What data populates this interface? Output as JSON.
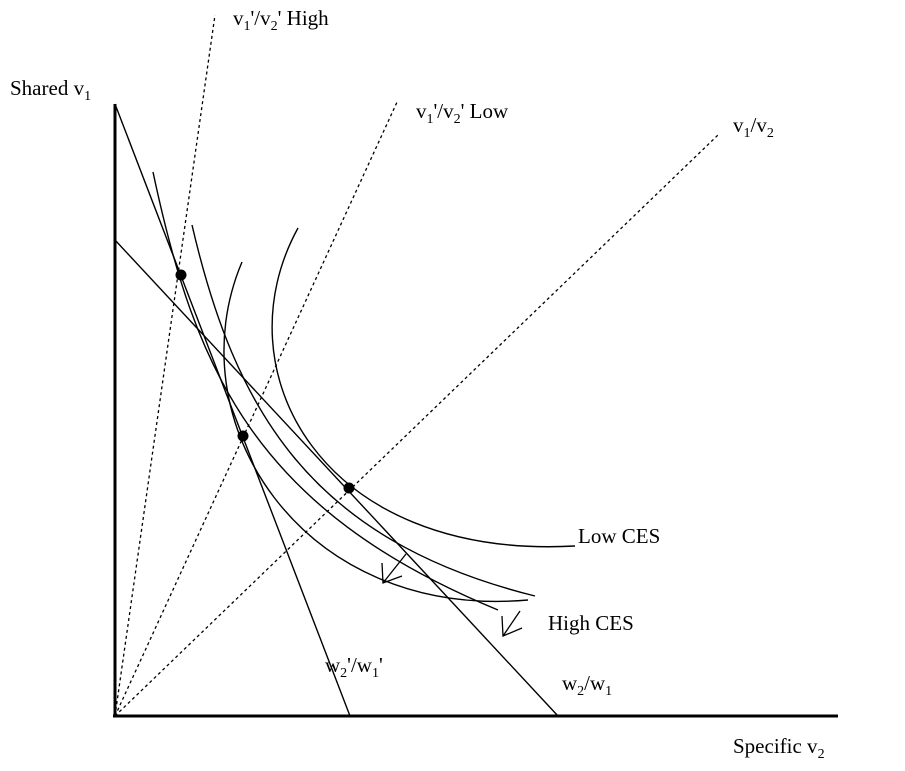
{
  "axes": {
    "y_label": "Shared v",
    "y_label_sub": "1",
    "x_label": "Specific v",
    "x_label_sub": "2"
  },
  "rays": {
    "high": {
      "a": "v",
      "a_sub": "1",
      "b": "'/v",
      "b_sub": "2",
      "c": "' High"
    },
    "low": {
      "a": "v",
      "a_sub": "1",
      "b": "'/v",
      "b_sub": "2",
      "c": "' Low"
    },
    "base": {
      "a": "v",
      "a_sub": "1",
      "b": "/v",
      "b_sub": "2"
    }
  },
  "budget_lines": {
    "new": {
      "a": "w",
      "a_sub": "2",
      "b": "'/w",
      "b_sub": "1",
      "c": "'"
    },
    "old": {
      "a": "w",
      "a_sub": "2",
      "b": "/w",
      "b_sub": "1"
    }
  },
  "curves": {
    "low_ces": "Low CES",
    "high_ces": "High CES"
  }
}
